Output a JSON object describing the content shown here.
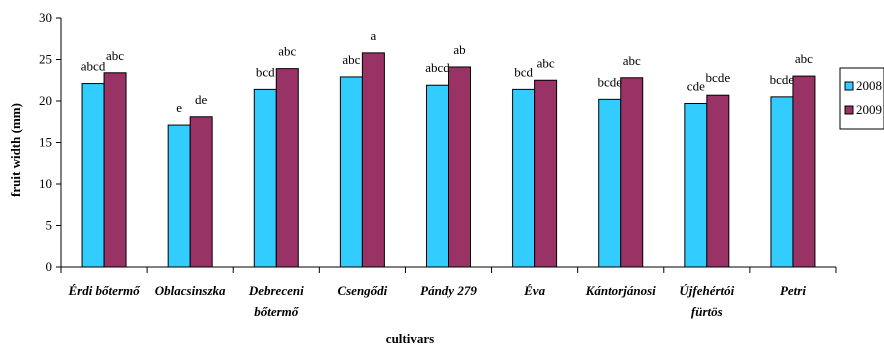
{
  "chart_data": {
    "type": "bar",
    "title": "",
    "xlabel": "cultivars",
    "ylabel": "fruit width (mm)",
    "ylim": [
      0,
      30
    ],
    "yticks": [
      0,
      5,
      10,
      15,
      20,
      25,
      30
    ],
    "grid": false,
    "legend_position": "right",
    "categories": [
      [
        "Érdi bőtermő"
      ],
      [
        "Oblacsinszka"
      ],
      [
        "Debreceni",
        "bőtermő"
      ],
      [
        "Csengődi"
      ],
      [
        "Pándy 279"
      ],
      [
        "Éva"
      ],
      [
        "Kántorjánosi"
      ],
      [
        "Újfehértói",
        "fürtös"
      ],
      [
        "Petri"
      ]
    ],
    "series": [
      {
        "name": "2008",
        "color": "#33CCFF",
        "values": [
          22.1,
          17.1,
          21.4,
          22.9,
          21.9,
          21.4,
          20.2,
          19.7,
          20.5
        ],
        "labels": [
          "abcd",
          "e",
          "bcd",
          "abc",
          "abcd",
          "bcd",
          "bcde",
          "cde",
          "bcde"
        ]
      },
      {
        "name": "2009",
        "color": "#993366",
        "values": [
          23.4,
          18.1,
          23.9,
          25.8,
          24.1,
          22.5,
          22.8,
          20.7,
          23.0
        ],
        "labels": [
          "abc",
          "de",
          "abc",
          "a",
          "ab",
          "abc",
          "abc",
          "bcde",
          "abc"
        ]
      }
    ]
  }
}
